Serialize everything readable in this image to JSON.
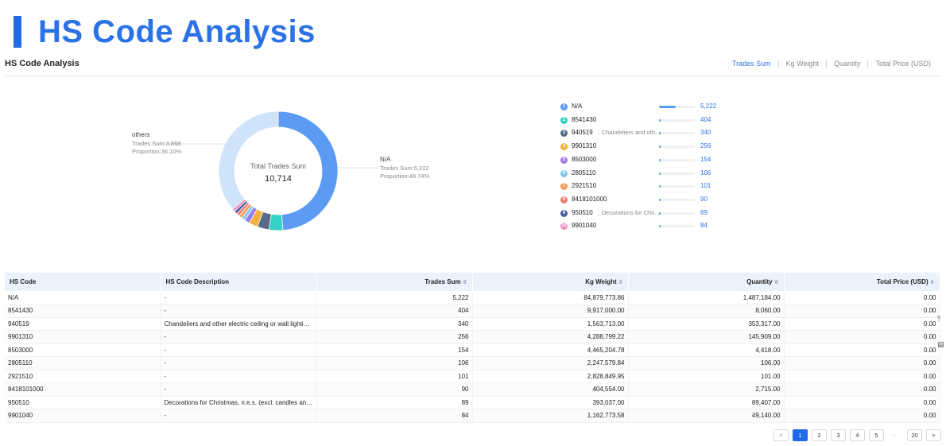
{
  "hero": {
    "title": "HS Code Analysis"
  },
  "section": {
    "title": "HS Code Analysis"
  },
  "metric_tabs": [
    {
      "label": "Trades Sum",
      "active": true
    },
    {
      "label": "Kg Weight",
      "active": false
    },
    {
      "label": "Quantity",
      "active": false
    },
    {
      "label": "Total Price (USD)",
      "active": false
    }
  ],
  "chart_data": {
    "type": "pie",
    "center_label": "Total Trades Sum",
    "center_value": "10,714",
    "total": 10714,
    "slices": [
      {
        "name": "N/A",
        "value": 5222,
        "proportion": "48.74%",
        "color": "#5b9bf3"
      },
      {
        "name": "8541430",
        "value": 404,
        "color": "#33d1c6"
      },
      {
        "name": "940519",
        "value": 340,
        "color": "#596b86"
      },
      {
        "name": "9901310",
        "value": 256,
        "color": "#f4b23f"
      },
      {
        "name": "8503000",
        "value": 154,
        "color": "#9a7ce8"
      },
      {
        "name": "2805110",
        "value": 106,
        "color": "#7fc7ee"
      },
      {
        "name": "2921510",
        "value": 101,
        "color": "#f49d57"
      },
      {
        "name": "8418101000",
        "value": 90,
        "color": "#ee7d69"
      },
      {
        "name": "950510",
        "value": 89,
        "color": "#4b5ea8"
      },
      {
        "name": "9901040",
        "value": 84,
        "color": "#ec8dbd"
      },
      {
        "name": "others",
        "value": 3868,
        "proportion": "36.10%",
        "color": "#cfe4fb"
      }
    ],
    "callouts": {
      "right": {
        "name": "N/A",
        "line1": "Trades Sum:5,222",
        "line2": "Proportion:48.74%"
      },
      "left": {
        "name": "others",
        "line1": "Trades Sum:3,868",
        "line2": "Proportion:36.10%"
      }
    }
  },
  "ranking": [
    {
      "rank": "1",
      "code": "N/A",
      "desc": "",
      "value": "5,222",
      "fraction": 1.0,
      "color": "#5b9bf3"
    },
    {
      "rank": "2",
      "code": "8541430",
      "desc": "",
      "value": "404",
      "fraction": 0.077,
      "color": "#33d1c6"
    },
    {
      "rank": "3",
      "code": "940519",
      "desc": "Chandeliers and oth...",
      "value": "340",
      "fraction": 0.065,
      "color": "#596b86"
    },
    {
      "rank": "4",
      "code": "9901310",
      "desc": "",
      "value": "256",
      "fraction": 0.049,
      "color": "#f4b23f"
    },
    {
      "rank": "5",
      "code": "8503000",
      "desc": "",
      "value": "154",
      "fraction": 0.03,
      "color": "#9a7ce8"
    },
    {
      "rank": "6",
      "code": "2805110",
      "desc": "",
      "value": "106",
      "fraction": 0.02,
      "color": "#7fc7ee"
    },
    {
      "rank": "7",
      "code": "2921510",
      "desc": "",
      "value": "101",
      "fraction": 0.019,
      "color": "#f49d57"
    },
    {
      "rank": "8",
      "code": "8418101000",
      "desc": "",
      "value": "90",
      "fraction": 0.017,
      "color": "#ee7d69"
    },
    {
      "rank": "9",
      "code": "950510",
      "desc": "Decorations for Chri...",
      "value": "89",
      "fraction": 0.017,
      "color": "#4b5ea8"
    },
    {
      "rank": "10",
      "code": "9901040",
      "desc": "",
      "value": "84",
      "fraction": 0.016,
      "color": "#ec8dbd"
    }
  ],
  "table": {
    "headers": [
      "HS Code",
      "HS Code Description",
      "Trades Sum",
      "Kg Weight",
      "Quantity",
      "Total Price (USD)"
    ],
    "rows": [
      [
        "N/A",
        "-",
        "5,222",
        "84,879,773.86",
        "1,487,184.00",
        "0.00"
      ],
      [
        "8541430",
        "-",
        "404",
        "9,917,000.00",
        "8,060.00",
        "0.00"
      ],
      [
        "940519",
        "Chandeliers and other electric ceiling or wall lighting fixt...",
        "340",
        "1,563,713.00",
        "353,317.00",
        "0.00"
      ],
      [
        "9901310",
        "-",
        "256",
        "4,288,799.22",
        "145,909.00",
        "0.00"
      ],
      [
        "8503000",
        "-",
        "154",
        "4,465,204.78",
        "4,418.00",
        "0.00"
      ],
      [
        "2805110",
        "-",
        "106",
        "2,247,579.84",
        "106.00",
        "0.00"
      ],
      [
        "2921510",
        "-",
        "101",
        "2,828,849.95",
        "101.00",
        "0.00"
      ],
      [
        "8418101000",
        "-",
        "90",
        "404,554.00",
        "2,715.00",
        "0.00"
      ],
      [
        "950510",
        "Decorations for Christmas, n.e.s. (excl. candles and elect...",
        "89",
        "393,037.00",
        "89,407.00",
        "0.00"
      ],
      [
        "9901040",
        "-",
        "84",
        "1,162,773.58",
        "49,140.00",
        "0.00"
      ]
    ]
  },
  "pagination": {
    "prev": "<",
    "pages": [
      "1",
      "2",
      "3",
      "4",
      "5"
    ],
    "current": "1",
    "ellipsis": "···",
    "last": "20",
    "next": ">"
  },
  "side_icons": [
    "back-to-top-icon",
    "feedback-icon"
  ]
}
